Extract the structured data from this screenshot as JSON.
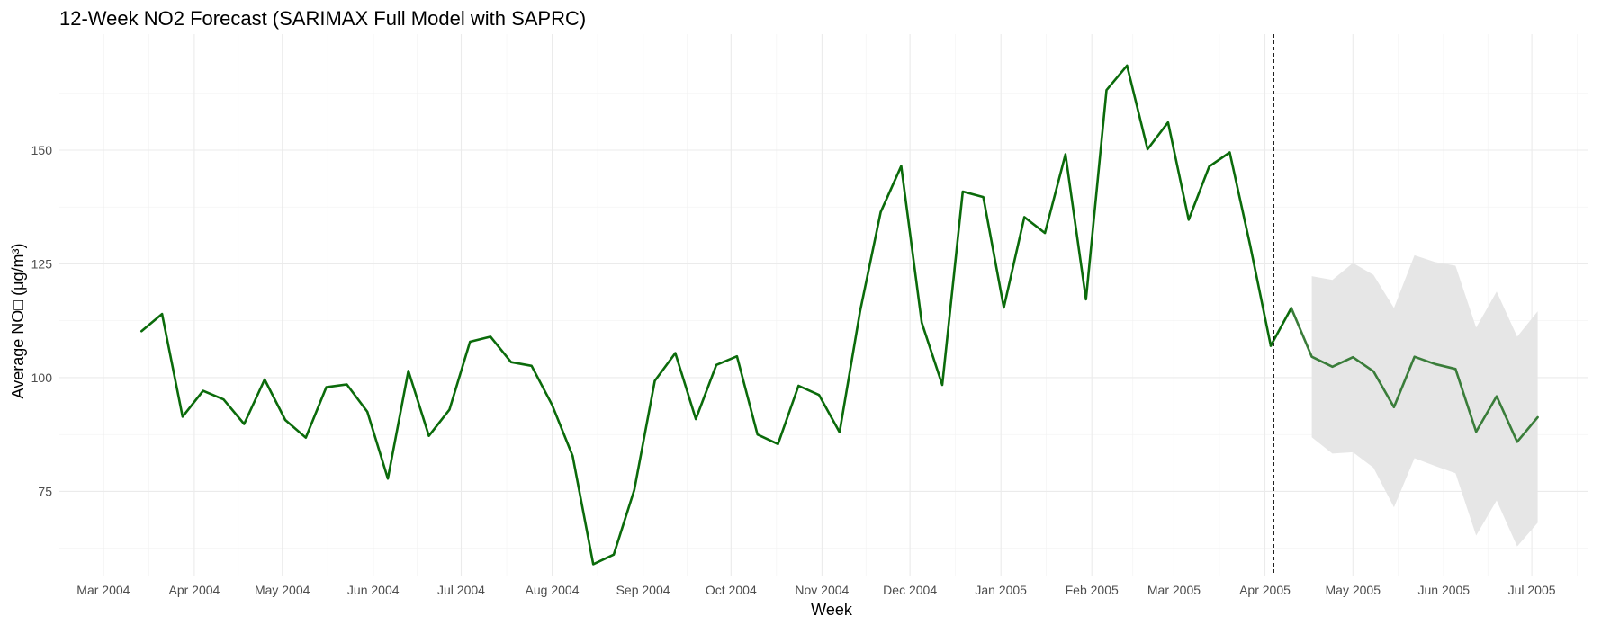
{
  "chart_data": {
    "type": "line",
    "title": "12-Week NO2 Forecast (SARIMAX Full Model with SAPRC)",
    "xlabel": "Week",
    "ylabel": "Average NO□ (μg/m³)",
    "x_ticks": [
      {
        "date": "2004-03-01",
        "label": "Mar 2004"
      },
      {
        "date": "2004-04-01",
        "label": "Apr 2004"
      },
      {
        "date": "2004-05-01",
        "label": "May 2004"
      },
      {
        "date": "2004-06-01",
        "label": "Jun 2004"
      },
      {
        "date": "2004-07-01",
        "label": "Jul 2004"
      },
      {
        "date": "2004-08-01",
        "label": "Aug 2004"
      },
      {
        "date": "2004-09-01",
        "label": "Sep 2004"
      },
      {
        "date": "2004-10-01",
        "label": "Oct 2004"
      },
      {
        "date": "2004-11-01",
        "label": "Nov 2004"
      },
      {
        "date": "2004-12-01",
        "label": "Dec 2004"
      },
      {
        "date": "2005-01-01",
        "label": "Jan 2005"
      },
      {
        "date": "2005-02-01",
        "label": "Feb 2005"
      },
      {
        "date": "2005-03-01",
        "label": "Mar 2005"
      },
      {
        "date": "2005-04-01",
        "label": "Apr 2005"
      },
      {
        "date": "2005-05-01",
        "label": "May 2005"
      },
      {
        "date": "2005-06-01",
        "label": "Jun 2005"
      },
      {
        "date": "2005-07-01",
        "label": "Jul 2005"
      }
    ],
    "y_ticks": [
      75,
      100,
      125,
      150
    ],
    "xlim": [
      "2004-02-15",
      "2005-07-20"
    ],
    "ylim": [
      56.5,
      175.5
    ],
    "grid": true,
    "forecast_start": "2005-04-04",
    "series": [
      {
        "color": "#0b6b0b",
        "x": [
          "2004-03-14",
          "2004-03-21",
          "2004-03-28",
          "2004-04-04",
          "2004-04-11",
          "2004-04-18",
          "2004-04-25",
          "2004-05-02",
          "2004-05-09",
          "2004-05-16",
          "2004-05-23",
          "2004-05-30",
          "2004-06-06",
          "2004-06-13",
          "2004-06-20",
          "2004-06-27",
          "2004-07-04",
          "2004-07-11",
          "2004-07-18",
          "2004-07-25",
          "2004-08-01",
          "2004-08-08",
          "2004-08-15",
          "2004-08-22",
          "2004-08-29",
          "2004-09-05",
          "2004-09-12",
          "2004-09-19",
          "2004-09-26",
          "2004-10-03",
          "2004-10-10",
          "2004-10-17",
          "2004-10-24",
          "2004-10-31",
          "2004-11-07",
          "2004-11-14",
          "2004-11-21",
          "2004-11-28",
          "2004-12-05",
          "2004-12-12",
          "2004-12-19",
          "2004-12-26",
          "2005-01-02",
          "2005-01-09",
          "2005-01-16",
          "2005-01-23",
          "2005-01-30",
          "2005-02-06",
          "2005-02-13",
          "2005-02-20",
          "2005-02-27",
          "2005-03-06",
          "2005-03-13",
          "2005-03-20",
          "2005-03-27",
          "2005-04-03"
        ],
        "values": [
          110.2,
          114.0,
          91.4,
          97.1,
          95.2,
          89.8,
          99.6,
          90.7,
          86.8,
          97.9,
          98.5,
          92.5,
          77.8,
          101.5,
          87.2,
          93.0,
          107.9,
          109.0,
          103.4,
          102.6,
          94.0,
          82.8,
          59.0,
          61.1,
          75.3,
          99.3,
          105.4,
          90.9,
          102.8,
          104.7,
          87.5,
          85.4,
          98.2,
          96.2,
          88.0,
          114.6,
          136.4,
          146.5,
          112.1,
          98.4,
          140.9,
          139.7,
          115.4,
          135.3,
          131.8,
          149.1,
          117.2,
          163.2,
          168.6,
          150.2,
          156.1,
          134.7,
          146.4,
          149.5,
          129.0,
          107.0
        ]
      },
      {
        "color": "#0b6b0b",
        "x": [
          "2005-04-03",
          "2005-04-10"
        ],
        "values": [
          107.0,
          115.3
        ]
      },
      {
        "color": "#3a7d3a",
        "x": [
          "2005-04-10",
          "2005-04-17",
          "2005-04-24",
          "2005-05-01",
          "2005-05-08",
          "2005-05-15",
          "2005-05-22",
          "2005-05-29",
          "2005-06-05",
          "2005-06-12",
          "2005-06-19",
          "2005-06-26",
          "2005-07-03"
        ],
        "values": [
          115.3,
          104.6,
          102.4,
          104.5,
          101.4,
          93.5,
          104.6,
          103.0,
          101.9,
          88.1,
          95.9,
          85.9,
          91.3
        ]
      }
    ],
    "interval": {
      "color": "#e6e6e6",
      "x": [
        "2005-04-17",
        "2005-04-24",
        "2005-05-01",
        "2005-05-08",
        "2005-05-15",
        "2005-05-22",
        "2005-05-29",
        "2005-06-05",
        "2005-06-12",
        "2005-06-19",
        "2005-06-26",
        "2005-07-03"
      ],
      "lower": [
        86.9,
        83.3,
        83.6,
        80.2,
        71.5,
        82.3,
        80.6,
        79.0,
        65.3,
        73.0,
        62.9,
        68.1
      ],
      "upper": [
        122.3,
        121.5,
        125.2,
        122.6,
        115.3,
        126.9,
        125.4,
        124.6,
        111.0,
        118.9,
        109.0,
        114.6
      ]
    }
  }
}
